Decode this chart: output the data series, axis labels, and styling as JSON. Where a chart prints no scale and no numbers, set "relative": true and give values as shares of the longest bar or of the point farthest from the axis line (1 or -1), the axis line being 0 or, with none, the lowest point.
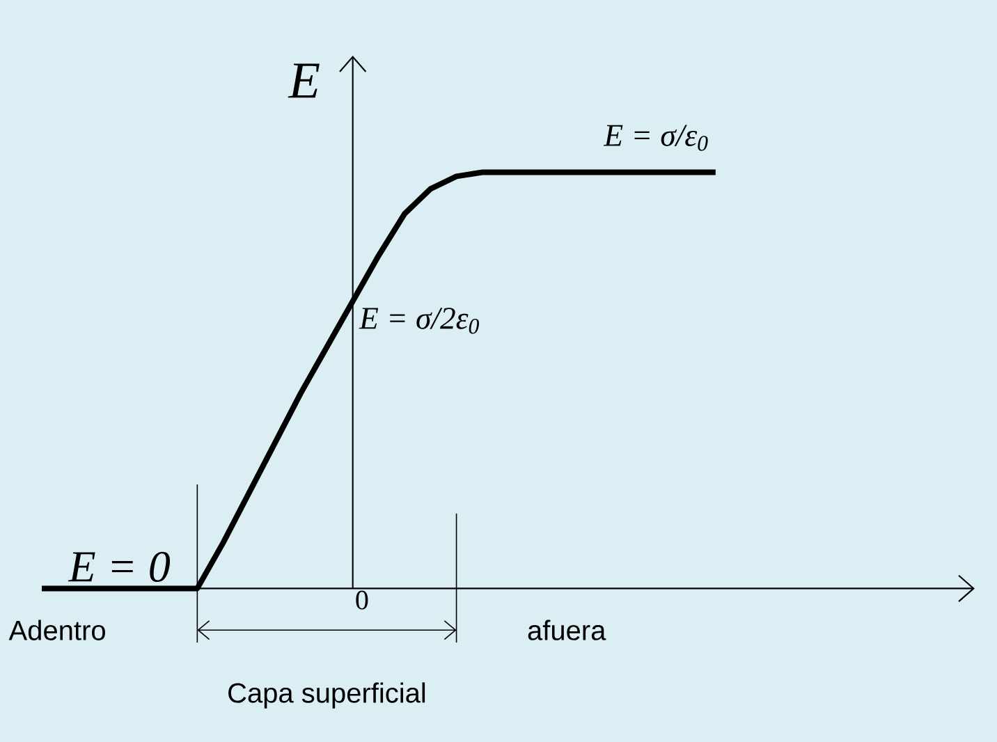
{
  "chart_data": {
    "type": "line",
    "relative": true,
    "ylabel": "E",
    "categories": [
      null,
      null,
      null,
      null,
      null,
      null,
      null,
      null,
      null,
      null,
      null,
      null,
      null,
      null,
      null,
      null,
      null,
      null,
      null,
      null,
      null,
      null,
      null,
      null,
      null,
      null,
      null
    ],
    "series": [
      {
        "color": "#000000",
        "values": [
          0,
          0,
          0,
          0,
          0,
          0,
          0,
          0.11,
          0.23,
          0.35,
          0.47,
          0.58,
          0.69,
          0.8,
          0.9,
          0.96,
          0.99,
          1,
          1,
          1,
          1,
          1,
          1,
          1,
          1,
          1,
          1
        ]
      }
    ],
    "marker": "none",
    "line_style": "solid",
    "annotations": [
      {
        "text": "E = σ/ε$_{0}$",
        "y": 1
      },
      "E = σ/2ε$_{0}$",
      {
        "text": "E = 0",
        "y": 0
      },
      "Adentro",
      "afuera",
      "0",
      "Capa superficial"
    ]
  }
}
